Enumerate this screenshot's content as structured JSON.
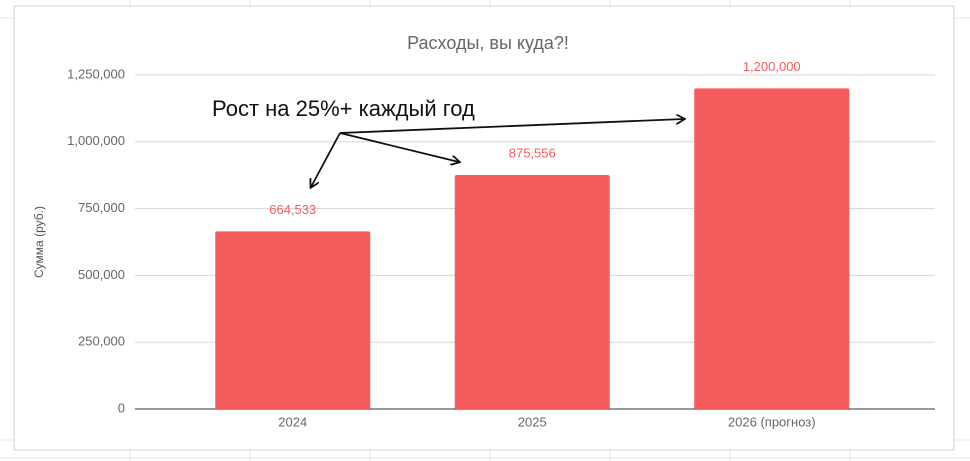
{
  "chart_data": {
    "type": "bar",
    "title": "Расходы, вы куда?!",
    "y_label": "Сумма (руб.)",
    "annotation": "Рост на 25%+ каждый год",
    "categories": [
      "2024",
      "2025",
      "2026 (прогноз)"
    ],
    "values": [
      664533,
      875556,
      1200000
    ],
    "value_labels": [
      "664,533",
      "875,556",
      "1,200,000"
    ],
    "color": "#f65b5d",
    "ylim": [
      0,
      1250000
    ],
    "yticks": [
      0,
      {
        "value": 250000,
        "label": "250,000"
      },
      {
        "value": 500000,
        "label": "500,000"
      },
      {
        "value": 750000,
        "label": "750,000"
      },
      {
        "value": 1000000,
        "label": "1,000,000"
      },
      {
        "value": 1250000,
        "label": "1,250,000"
      }
    ],
    "grid": true
  }
}
